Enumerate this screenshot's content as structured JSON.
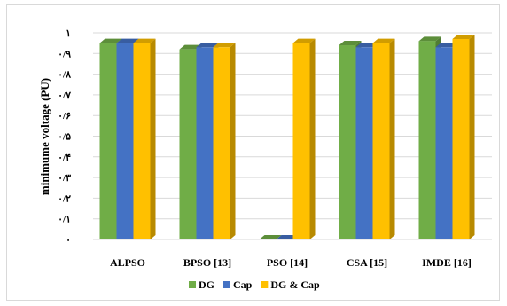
{
  "chart_data": {
    "type": "bar",
    "title": "",
    "xlabel": "",
    "ylabel": "minimume voltage (PU)",
    "ylim": [
      0,
      1
    ],
    "y_ticks": [
      0,
      0.1,
      0.2,
      0.3,
      0.4,
      0.5,
      0.6,
      0.7,
      0.8,
      0.9,
      1
    ],
    "y_tick_labels": [
      "٠",
      "٠/١",
      "٠/٢",
      "٠/٣",
      "٠/۴",
      "٠/۵",
      "٠/۶",
      "٠/٧",
      "٠/٨",
      "٠/٩",
      "١"
    ],
    "categories": [
      "ALPSO",
      "BPSO [13]",
      "PSO [14]",
      "CSA [15]",
      "IMDE [16]"
    ],
    "series": [
      {
        "name": "DG",
        "color": "#70ad47",
        "values": [
          0.95,
          0.92,
          0,
          0.94,
          0.96
        ]
      },
      {
        "name": "Cap",
        "color": "#4472c4",
        "values": [
          0.95,
          0.93,
          0,
          0.93,
          0.93
        ]
      },
      {
        "name": "DG & Cap",
        "color": "#ffc000",
        "values": [
          0.95,
          0.93,
          0.95,
          0.95,
          0.97
        ]
      }
    ],
    "grid": true,
    "legend_position": "bottom"
  }
}
